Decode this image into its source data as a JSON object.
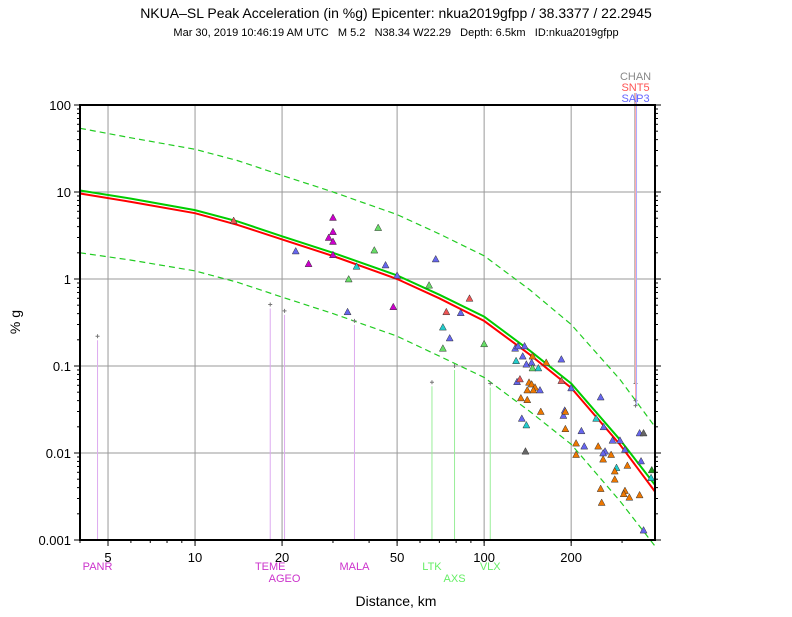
{
  "chart_data": {
    "type": "scatter",
    "title": "NKUA–SL Peak Acceleration (in %g) Epicenter: nkua2019gfpp / 38.3377 / 22.2945",
    "subtitle": "Mar 30, 2019 10:46:19 AM UTC   M 5.2   N38.34 W22.29   Depth: 6.5km   ID:nkua2019gfpp",
    "xlabel": "Distance, km",
    "ylabel": "% g",
    "xscale": "log",
    "yscale": "log",
    "xlim": [
      4,
      390
    ],
    "ylim": [
      0.001,
      100
    ],
    "xticks": [
      5,
      10,
      20,
      50,
      100,
      200
    ],
    "xtick_labels": [
      "5",
      "10",
      "20",
      "50",
      "100",
      "200"
    ],
    "yticks": [
      0.001,
      0.01,
      0.1,
      1,
      10,
      100
    ],
    "ytick_labels": [
      "0.001",
      "0.01",
      "0.1",
      "1",
      "10",
      "100"
    ],
    "grid": true,
    "colors": {
      "purple": "#cc00cc",
      "blue": "#6666ee",
      "green": "#66dd66",
      "cyan": "#22cccc",
      "orange": "#ee7700",
      "red": "#ee5555",
      "grey": "#666666",
      "darkgreen": "#229922"
    },
    "curves": {
      "x": [
        4,
        6,
        10,
        14,
        20,
        30,
        50,
        70,
        100,
        144,
        200,
        295,
        390
      ],
      "series": [
        {
          "name": "median-green",
          "color": "#00cc00",
          "dash": false,
          "values": [
            10.4,
            8.4,
            6.2,
            4.6,
            3.1,
            2.0,
            1.1,
            0.66,
            0.37,
            0.15,
            0.063,
            0.0142,
            0.0043
          ]
        },
        {
          "name": "median-red",
          "color": "#ff0000",
          "dash": false,
          "values": [
            9.6,
            7.7,
            5.7,
            4.2,
            2.85,
            1.84,
            1.0,
            0.6,
            0.33,
            0.135,
            0.056,
            0.0125,
            0.0036
          ]
        },
        {
          "name": "upper-bound",
          "color": "#22cc22",
          "dash": true,
          "values": [
            54,
            42,
            31,
            23,
            15.5,
            10,
            5.5,
            3.3,
            1.85,
            0.75,
            0.3,
            0.07,
            0.02
          ]
        },
        {
          "name": "lower-bound",
          "color": "#22cc22",
          "dash": true,
          "values": [
            2.0,
            1.65,
            1.24,
            0.92,
            0.62,
            0.4,
            0.22,
            0.13,
            0.074,
            0.03,
            0.0126,
            0.0028,
            0.00085
          ]
        }
      ]
    },
    "points": [
      [
        13.6,
        4.7,
        "red"
      ],
      [
        22.3,
        2.1,
        "blue"
      ],
      [
        24.7,
        1.5,
        "purple"
      ],
      [
        30,
        5.1,
        "purple"
      ],
      [
        30,
        3.5,
        "purple"
      ],
      [
        29,
        3.0,
        "purple"
      ],
      [
        30,
        2.7,
        "purple"
      ],
      [
        30,
        1.9,
        "purple"
      ],
      [
        43,
        3.9,
        "green"
      ],
      [
        41.7,
        2.15,
        "green"
      ],
      [
        36.2,
        1.4,
        "cyan"
      ],
      [
        34,
        1.0,
        "green"
      ],
      [
        45.6,
        1.45,
        "blue"
      ],
      [
        50,
        1.1,
        "blue"
      ],
      [
        68,
        1.7,
        "blue"
      ],
      [
        64.5,
        0.85,
        "green"
      ],
      [
        48.5,
        0.48,
        "purple"
      ],
      [
        33.7,
        0.42,
        "blue"
      ],
      [
        74,
        0.42,
        "red"
      ],
      [
        72,
        0.28,
        "cyan"
      ],
      [
        89,
        0.6,
        "red"
      ],
      [
        83,
        0.41,
        "blue"
      ],
      [
        72,
        0.16,
        "green"
      ],
      [
        76,
        0.21,
        "blue"
      ],
      [
        100,
        0.18,
        "green"
      ],
      [
        128,
        0.16,
        "blue"
      ],
      [
        131,
        0.17,
        "blue"
      ],
      [
        138,
        0.17,
        "blue"
      ],
      [
        129,
        0.115,
        "cyan"
      ],
      [
        136,
        0.13,
        "blue"
      ],
      [
        140,
        0.105,
        "blue"
      ],
      [
        146,
        0.11,
        "blue"
      ],
      [
        147,
        0.095,
        "green"
      ],
      [
        154,
        0.095,
        "cyan"
      ],
      [
        147,
        0.13,
        "orange"
      ],
      [
        164,
        0.11,
        "orange"
      ],
      [
        185,
        0.12,
        "blue"
      ],
      [
        130,
        0.066,
        "blue"
      ],
      [
        133,
        0.071,
        "red"
      ],
      [
        143,
        0.065,
        "orange"
      ],
      [
        146,
        0.062,
        "orange"
      ],
      [
        150,
        0.057,
        "orange"
      ],
      [
        141,
        0.053,
        "orange"
      ],
      [
        148,
        0.053,
        "orange"
      ],
      [
        156,
        0.053,
        "blue"
      ],
      [
        134,
        0.043,
        "orange"
      ],
      [
        141,
        0.041,
        "orange"
      ],
      [
        185,
        0.068,
        "red"
      ],
      [
        200,
        0.056,
        "blue"
      ],
      [
        253,
        0.044,
        "blue"
      ],
      [
        157,
        0.03,
        "orange"
      ],
      [
        135,
        0.025,
        "blue"
      ],
      [
        140,
        0.021,
        "cyan"
      ],
      [
        190,
        0.031,
        "blue"
      ],
      [
        188,
        0.027,
        "blue"
      ],
      [
        191,
        0.03,
        "orange"
      ],
      [
        191,
        0.019,
        "orange"
      ],
      [
        139,
        0.0105,
        "grey"
      ],
      [
        244,
        0.025,
        "cyan"
      ],
      [
        259,
        0.02,
        "blue"
      ],
      [
        217,
        0.018,
        "blue"
      ],
      [
        208,
        0.013,
        "orange"
      ],
      [
        222,
        0.012,
        "blue"
      ],
      [
        208,
        0.0096,
        "orange"
      ],
      [
        248,
        0.012,
        "orange"
      ],
      [
        278,
        0.014,
        "blue"
      ],
      [
        295,
        0.014,
        "blue"
      ],
      [
        307,
        0.011,
        "blue"
      ],
      [
        262,
        0.0105,
        "blue"
      ],
      [
        258,
        0.01,
        "blue"
      ],
      [
        275,
        0.0096,
        "orange"
      ],
      [
        258,
        0.0085,
        "orange"
      ],
      [
        345,
        0.017,
        "blue"
      ],
      [
        356,
        0.017,
        "grey"
      ],
      [
        349,
        0.0081,
        "blue"
      ],
      [
        313,
        0.0072,
        "orange"
      ],
      [
        287,
        0.0068,
        "cyan"
      ],
      [
        283,
        0.0062,
        "orange"
      ],
      [
        283,
        0.005,
        "orange"
      ],
      [
        380,
        0.0064,
        "darkgreen"
      ],
      [
        378,
        0.0052,
        "cyan"
      ],
      [
        253,
        0.0039,
        "orange"
      ],
      [
        307,
        0.0037,
        "orange"
      ],
      [
        304,
        0.0034,
        "orange"
      ],
      [
        318,
        0.0031,
        "orange"
      ],
      [
        345,
        0.0033,
        "orange"
      ],
      [
        255,
        0.0027,
        "orange"
      ],
      [
        356,
        0.0013,
        "blue"
      ]
    ],
    "stations": [
      {
        "name": "PANR",
        "distance": 4.6,
        "value": 0.22,
        "color": "#cc33cc",
        "line": "#ddaaf0",
        "row": 0,
        "pos": "bottom"
      },
      {
        "name": "TEME",
        "distance": 18.2,
        "value": 0.51,
        "color": "#cc33cc",
        "line": "#ddaaf0",
        "row": 0,
        "pos": "bottom"
      },
      {
        "name": "AGEO",
        "distance": 20.4,
        "value": 0.43,
        "color": "#cc33cc",
        "line": "#ddaaf0",
        "row": 1,
        "pos": "bottom"
      },
      {
        "name": "MALA",
        "distance": 35.6,
        "value": 0.33,
        "color": "#cc33cc",
        "line": "#ddaaf0",
        "row": 0,
        "pos": "bottom"
      },
      {
        "name": "LTK",
        "distance": 66,
        "value": 0.065,
        "color": "#66ee66",
        "line": "#99ee99",
        "row": 0,
        "pos": "bottom"
      },
      {
        "name": "AXS",
        "distance": 79,
        "value": 0.1,
        "color": "#66ee66",
        "line": "#99ee99",
        "row": 1,
        "pos": "bottom"
      },
      {
        "name": "VLX",
        "distance": 105,
        "value": 0.063,
        "color": "#66ee66",
        "line": "#99ee99",
        "row": 0,
        "pos": "bottom"
      },
      {
        "name": "CHAN",
        "distance": 334,
        "value": 0.063,
        "color": "#888888",
        "line": "#bbbbbb",
        "row": 0,
        "pos": "top"
      },
      {
        "name": "SNT5",
        "distance": 334,
        "value": 0.04,
        "color": "#ff5555",
        "line": "#ffaaaa",
        "row": 1,
        "pos": "top"
      },
      {
        "name": "SAP3",
        "distance": 334,
        "value": 0.035,
        "color": "#6666ff",
        "line": "#aaaaff",
        "row": 2,
        "pos": "top"
      }
    ]
  }
}
